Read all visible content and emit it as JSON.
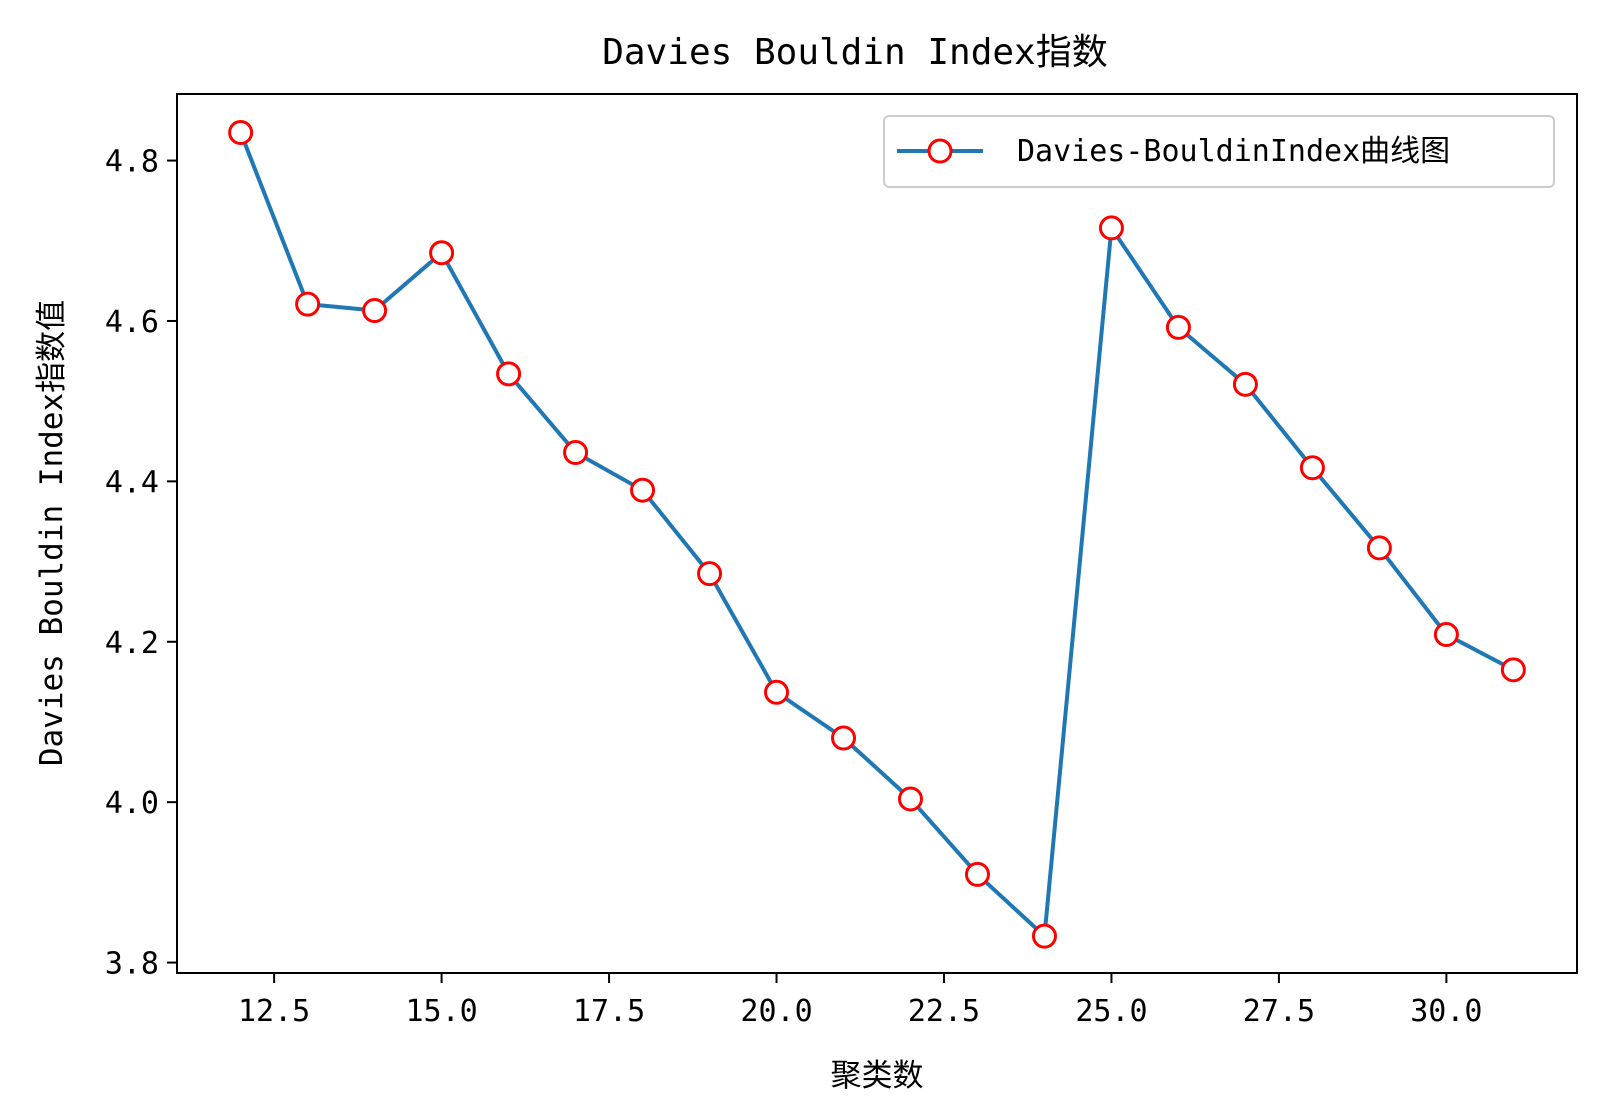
{
  "chart_data": {
    "type": "line",
    "title": "Davies Bouldin Index指数",
    "xlabel": "聚类数",
    "ylabel": "Davies Bouldin Index指数值",
    "x": [
      12,
      13,
      14,
      15,
      16,
      17,
      18,
      19,
      20,
      21,
      22,
      23,
      24,
      25,
      26,
      27,
      28,
      29,
      30,
      31
    ],
    "series": [
      {
        "name": "Davies-BouldinIndex曲线图",
        "values": [
          4.835,
          4.621,
          4.613,
          4.685,
          4.534,
          4.436,
          4.389,
          4.285,
          4.137,
          4.08,
          4.004,
          3.91,
          3.833,
          4.716,
          4.592,
          4.521,
          4.417,
          4.317,
          4.209,
          4.165
        ],
        "line_color": "#1f77b4",
        "marker": "circle",
        "marker_face_color": "#ffffff",
        "marker_edge_color": "#ff0000"
      }
    ],
    "xlim": [
      11.05,
      31.95
    ],
    "ylim": [
      3.787,
      4.883
    ],
    "xticks": [
      12.5,
      15.0,
      17.5,
      20.0,
      22.5,
      25.0,
      27.5,
      30.0
    ],
    "xtick_labels": [
      "12.5",
      "15.0",
      "17.5",
      "20.0",
      "22.5",
      "25.0",
      "27.5",
      "30.0"
    ],
    "yticks": [
      3.8,
      4.0,
      4.2,
      4.4,
      4.6,
      4.8
    ],
    "ytick_labels": [
      "3.8",
      "4.0",
      "4.2",
      "4.4",
      "4.6",
      "4.8"
    ],
    "grid": false,
    "legend_position": "upper right"
  }
}
